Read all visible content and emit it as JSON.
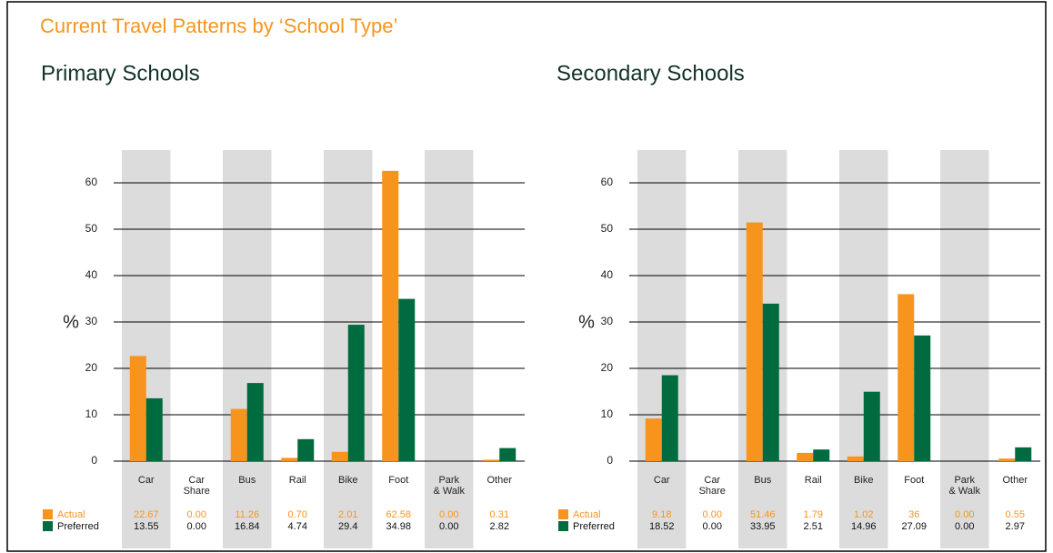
{
  "title": "Current Travel Patterns by ‘School Type’",
  "chart_data": [
    {
      "type": "bar",
      "title": "Primary Schools",
      "ylabel": "%",
      "categories": [
        "Car",
        "Car Share",
        "Bus",
        "Rail",
        "Bike",
        "Foot",
        "Park & Walk",
        "Other"
      ],
      "series": [
        {
          "name": "Actual",
          "color": "#f7941d",
          "values": [
            22.67,
            0,
            11.26,
            0.7,
            2.01,
            62.58,
            0,
            0.31
          ],
          "value_labels": [
            "22.67",
            "0.00",
            "11.26",
            "0.70",
            "2.01",
            "62.58",
            "0.00",
            "0.31"
          ]
        },
        {
          "name": "Preferred",
          "color": "#006b3f",
          "values": [
            13.55,
            0,
            16.84,
            4.74,
            29.4,
            34.98,
            0,
            2.82
          ],
          "value_labels": [
            "13.55",
            "0.00",
            "16.84",
            "4.74",
            "29.4",
            "34.98",
            "0.00",
            "2.82"
          ]
        }
      ],
      "ylim": [
        0,
        60
      ],
      "yticks": [
        0,
        10,
        20,
        30,
        40,
        50,
        60
      ],
      "grid": true
    },
    {
      "type": "bar",
      "title": "Secondary Schools",
      "ylabel": "%",
      "categories": [
        "Car",
        "Car Share",
        "Bus",
        "Rail",
        "Bike",
        "Foot",
        "Park & Walk",
        "Other"
      ],
      "series": [
        {
          "name": "Actual",
          "color": "#f7941d",
          "values": [
            9.18,
            0,
            51.46,
            1.79,
            1.02,
            36,
            0,
            0.55
          ],
          "value_labels": [
            "9.18",
            "0.00",
            "51.46",
            "1.79",
            "1.02",
            "36",
            "0.00",
            "0.55"
          ]
        },
        {
          "name": "Preferred",
          "color": "#006b3f",
          "values": [
            18.52,
            0,
            33.95,
            2.51,
            14.96,
            27.09,
            0,
            2.97
          ],
          "value_labels": [
            "18.52",
            "0.00",
            "33.95",
            "2.51",
            "14.96",
            "27.09",
            "0.00",
            "2.97"
          ]
        }
      ],
      "ylim": [
        0,
        60
      ],
      "yticks": [
        0,
        10,
        20,
        30,
        40,
        50,
        60
      ],
      "grid": true
    }
  ]
}
